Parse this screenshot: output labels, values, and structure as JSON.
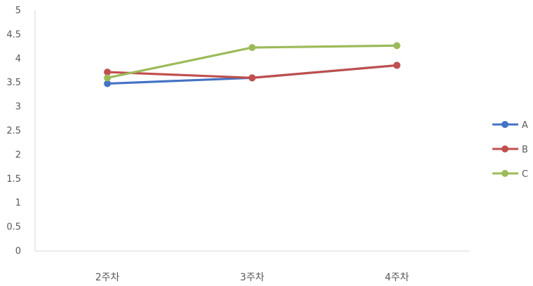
{
  "chart_data": {
    "type": "line",
    "title": "",
    "xlabel": "",
    "ylabel": "",
    "categories": [
      "2주차",
      "3주차",
      "4주차"
    ],
    "ylim": [
      0,
      5
    ],
    "y_ticks": [
      "0",
      "0.5",
      "1",
      "1.5",
      "2",
      "2.5",
      "3",
      "3.5",
      "4",
      "4.5",
      "5"
    ],
    "grid": false,
    "legend_position": "right",
    "series": [
      {
        "name": "A",
        "color": "#4472c4",
        "values": [
          3.48,
          3.6,
          3.86
        ]
      },
      {
        "name": "B",
        "color": "#c0504d",
        "values": [
          3.72,
          3.6,
          3.86
        ]
      },
      {
        "name": "C",
        "color": "#9bbb59",
        "values": [
          3.6,
          4.23,
          4.27
        ]
      }
    ]
  }
}
